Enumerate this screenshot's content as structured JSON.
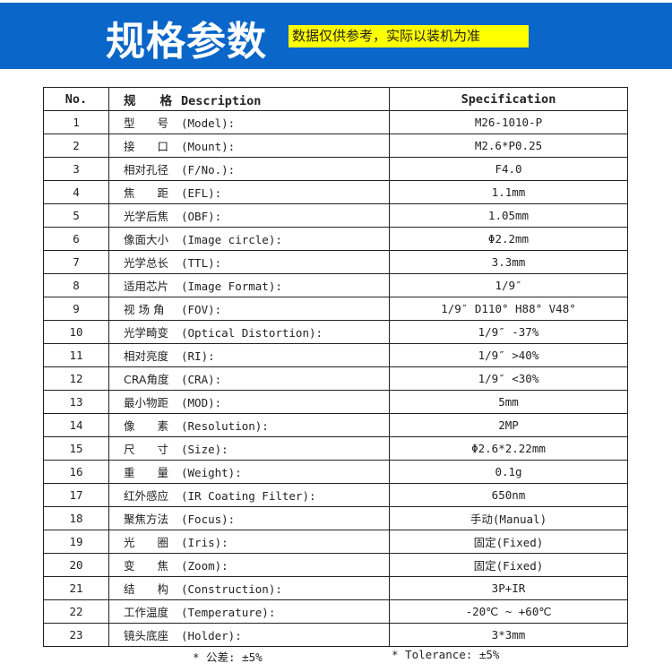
{
  "header": {
    "title": "规格参数",
    "note": "数据仅供参考，实际以装机为准",
    "banner_color": "#0a66c8",
    "note_color": "#ffff00"
  },
  "table": {
    "columns": {
      "no": "No.",
      "desc_cn": "规　　格",
      "desc_en": "Description",
      "spec": "Specification"
    },
    "rows": [
      {
        "no": "1",
        "cn": "型　　号",
        "en": "(Model):",
        "spec": "M26-1010-P"
      },
      {
        "no": "2",
        "cn": "接　　口",
        "en": "(Mount):",
        "spec": "M2.6*P0.25"
      },
      {
        "no": "3",
        "cn": "相对孔径",
        "en": "(F/No.):",
        "spec": "F4.0"
      },
      {
        "no": "4",
        "cn": "焦　　距",
        "en": "(EFL):",
        "spec": "1.1mm"
      },
      {
        "no": "5",
        "cn": "光学后焦",
        "en": "(OBF):",
        "spec": "1.05mm"
      },
      {
        "no": "6",
        "cn": "像面大小",
        "en": "(Image circle):",
        "spec": "Φ2.2mm"
      },
      {
        "no": "7",
        "cn": "光学总长",
        "en": "(TTL):",
        "spec": "3.3mm"
      },
      {
        "no": "8",
        "cn": "适用芯片",
        "en": "(Image Format):",
        "spec": "1/9″"
      },
      {
        "no": "9",
        "cn": "视 场 角",
        "en": "(FOV):",
        "spec": "1/9″ D110° H88°  V48°"
      },
      {
        "no": "10",
        "cn": "光学畸变",
        "en": "(Optical Distortion):",
        "spec": "1/9″ -37%"
      },
      {
        "no": "11",
        "cn": "相对亮度",
        "en": "(RI):",
        "spec": "1/9″ >40%"
      },
      {
        "no": "12",
        "cn": "CRA角度",
        "en": "(CRA):",
        "spec": "1/9″ <30%"
      },
      {
        "no": "13",
        "cn": "最小物距",
        "en": "(MOD):",
        "spec": "5mm"
      },
      {
        "no": "14",
        "cn": "像　　素",
        "en": "(Resolution):",
        "spec": "2MP"
      },
      {
        "no": "15",
        "cn": "尺　　寸",
        "en": "(Size):",
        "spec": "Φ2.6*2.22mm"
      },
      {
        "no": "16",
        "cn": "重　　量",
        "en": "(Weight):",
        "spec": "0.1g"
      },
      {
        "no": "17",
        "cn": "红外感应",
        "en": "(IR Coating Filter):",
        "spec": "650nm"
      },
      {
        "no": "18",
        "cn": "聚焦方法",
        "en": "(Focus):",
        "spec": "手动(Manual)"
      },
      {
        "no": "19",
        "cn": "光　　圈",
        "en": "(Iris):",
        "spec": "固定(Fixed)"
      },
      {
        "no": "20",
        "cn": "变　　焦",
        "en": "(Zoom):",
        "spec": "固定(Fixed)"
      },
      {
        "no": "21",
        "cn": "结　　构",
        "en": "(Construction):",
        "spec": "3P+IR"
      },
      {
        "no": "22",
        "cn": "工作温度",
        "en": "(Temperature):",
        "spec": "-20℃ ~ +60℃"
      },
      {
        "no": "23",
        "cn": "镜头底座",
        "en": "(Holder):",
        "spec": "3*3mm"
      }
    ]
  },
  "footer": {
    "tolerance_cn": "* 公差: ±5%",
    "tolerance_en": "* Tolerance: ±5%"
  }
}
